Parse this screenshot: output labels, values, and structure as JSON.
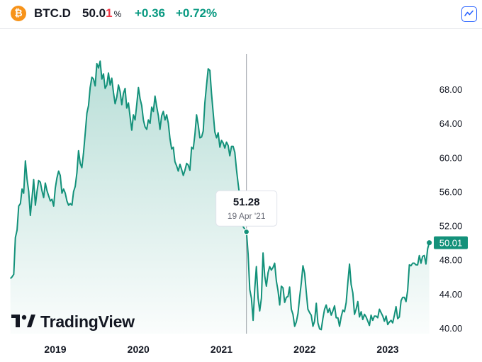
{
  "header": {
    "symbol": "BTC.D",
    "price_main": "50.0",
    "price_last": "1",
    "unit": "%",
    "change": "+0.36",
    "change_pct": "+0.72%"
  },
  "branding": {
    "name": "TradingView"
  },
  "colors": {
    "line": "#13917a",
    "fill": "#13917a",
    "positive": "#089981",
    "negative": "#f23645",
    "btc": "#f7931a",
    "accent": "#2962ff"
  },
  "chart_data": {
    "type": "area",
    "ylim": [
      39.3,
      72.9
    ],
    "y_ticks": [
      40,
      44,
      48,
      52,
      56,
      60,
      64,
      68
    ],
    "y_tick_labels": [
      "40.00",
      "44.00",
      "48.00",
      "52.00",
      "56.00",
      "60.00",
      "64.00",
      "68.00"
    ],
    "x_ticks": [
      2019,
      2020,
      2021,
      2022,
      2023
    ],
    "x_tick_labels": [
      "2019",
      "2020",
      "2021",
      "2022",
      "2023"
    ],
    "xlim": [
      2018.45,
      2023.65
    ],
    "last_value": "50.01",
    "tooltip": {
      "value": "51.28",
      "date": "19 Apr '21",
      "x": 2021.3
    },
    "series": [
      {
        "values": [
          [
            2018.46,
            45.8
          ],
          [
            2018.48,
            46.0
          ],
          [
            2018.5,
            46.3
          ],
          [
            2018.52,
            50.6
          ],
          [
            2018.54,
            51.5
          ],
          [
            2018.56,
            54.3
          ],
          [
            2018.58,
            54.6
          ],
          [
            2018.6,
            56.3
          ],
          [
            2018.62,
            55.8
          ],
          [
            2018.64,
            59.6
          ],
          [
            2018.66,
            57.5
          ],
          [
            2018.68,
            56.0
          ],
          [
            2018.7,
            53.2
          ],
          [
            2018.72,
            55.3
          ],
          [
            2018.74,
            57.4
          ],
          [
            2018.76,
            54.4
          ],
          [
            2018.78,
            56.0
          ],
          [
            2018.8,
            57.3
          ],
          [
            2018.82,
            57.1
          ],
          [
            2018.84,
            56.1
          ],
          [
            2018.86,
            55.3
          ],
          [
            2018.88,
            57.0
          ],
          [
            2018.9,
            56.1
          ],
          [
            2018.92,
            55.5
          ],
          [
            2018.94,
            54.9
          ],
          [
            2018.96,
            55.1
          ],
          [
            2018.98,
            54.3
          ],
          [
            2019.0,
            56.4
          ],
          [
            2019.02,
            57.6
          ],
          [
            2019.04,
            58.4
          ],
          [
            2019.06,
            57.9
          ],
          [
            2019.08,
            55.8
          ],
          [
            2019.1,
            56.3
          ],
          [
            2019.12,
            55.8
          ],
          [
            2019.14,
            54.9
          ],
          [
            2019.16,
            54.4
          ],
          [
            2019.18,
            54.6
          ],
          [
            2019.2,
            54.4
          ],
          [
            2019.22,
            56.0
          ],
          [
            2019.24,
            56.6
          ],
          [
            2019.26,
            58.2
          ],
          [
            2019.28,
            60.8
          ],
          [
            2019.3,
            59.3
          ],
          [
            2019.32,
            58.8
          ],
          [
            2019.34,
            60.6
          ],
          [
            2019.36,
            62.8
          ],
          [
            2019.38,
            65.2
          ],
          [
            2019.4,
            66.1
          ],
          [
            2019.42,
            68.2
          ],
          [
            2019.44,
            69.4
          ],
          [
            2019.46,
            69.2
          ],
          [
            2019.48,
            68.4
          ],
          [
            2019.5,
            71.0
          ],
          [
            2019.52,
            70.5
          ],
          [
            2019.54,
            71.3
          ],
          [
            2019.56,
            69.2
          ],
          [
            2019.58,
            69.8
          ],
          [
            2019.6,
            68.1
          ],
          [
            2019.62,
            68.5
          ],
          [
            2019.64,
            69.9
          ],
          [
            2019.66,
            68.5
          ],
          [
            2019.68,
            69.3
          ],
          [
            2019.7,
            67.6
          ],
          [
            2019.72,
            66.3
          ],
          [
            2019.74,
            67.1
          ],
          [
            2019.76,
            68.5
          ],
          [
            2019.78,
            67.7
          ],
          [
            2019.8,
            66.2
          ],
          [
            2019.82,
            67.5
          ],
          [
            2019.84,
            68.1
          ],
          [
            2019.86,
            65.8
          ],
          [
            2019.88,
            66.4
          ],
          [
            2019.9,
            64.8
          ],
          [
            2019.92,
            63.2
          ],
          [
            2019.94,
            65.0
          ],
          [
            2019.96,
            64.4
          ],
          [
            2019.98,
            66.2
          ],
          [
            2020.0,
            68.2
          ],
          [
            2020.02,
            66.9
          ],
          [
            2020.04,
            66.1
          ],
          [
            2020.06,
            64.4
          ],
          [
            2020.08,
            63.6
          ],
          [
            2020.1,
            63.3
          ],
          [
            2020.12,
            64.4
          ],
          [
            2020.14,
            64.0
          ],
          [
            2020.16,
            65.9
          ],
          [
            2020.18,
            65.4
          ],
          [
            2020.2,
            67.2
          ],
          [
            2020.22,
            66.0
          ],
          [
            2020.24,
            64.9
          ],
          [
            2020.26,
            63.3
          ],
          [
            2020.28,
            64.9
          ],
          [
            2020.3,
            65.4
          ],
          [
            2020.32,
            64.4
          ],
          [
            2020.34,
            65.0
          ],
          [
            2020.36,
            64.0
          ],
          [
            2020.38,
            62.2
          ],
          [
            2020.4,
            61.0
          ],
          [
            2020.42,
            61.2
          ],
          [
            2020.44,
            59.5
          ],
          [
            2020.46,
            59.0
          ],
          [
            2020.48,
            58.4
          ],
          [
            2020.5,
            59.2
          ],
          [
            2020.52,
            58.6
          ],
          [
            2020.54,
            57.9
          ],
          [
            2020.56,
            58.5
          ],
          [
            2020.58,
            59.3
          ],
          [
            2020.6,
            59.1
          ],
          [
            2020.62,
            58.5
          ],
          [
            2020.64,
            61.2
          ],
          [
            2020.66,
            61.0
          ],
          [
            2020.68,
            62.7
          ],
          [
            2020.7,
            65.0
          ],
          [
            2020.72,
            63.8
          ],
          [
            2020.74,
            62.3
          ],
          [
            2020.76,
            62.4
          ],
          [
            2020.78,
            63.1
          ],
          [
            2020.8,
            66.4
          ],
          [
            2020.82,
            68.5
          ],
          [
            2020.84,
            70.4
          ],
          [
            2020.86,
            70.2
          ],
          [
            2020.88,
            67.5
          ],
          [
            2020.9,
            65.2
          ],
          [
            2020.92,
            63.0
          ],
          [
            2020.94,
            62.3
          ],
          [
            2020.96,
            62.9
          ],
          [
            2020.98,
            61.2
          ],
          [
            2021.0,
            62.0
          ],
          [
            2021.02,
            61.7
          ],
          [
            2021.04,
            61.1
          ],
          [
            2021.06,
            61.8
          ],
          [
            2021.08,
            61.4
          ],
          [
            2021.1,
            60.2
          ],
          [
            2021.12,
            61.3
          ],
          [
            2021.14,
            61.3
          ],
          [
            2021.16,
            60.6
          ],
          [
            2021.18,
            58.6
          ],
          [
            2021.2,
            56.9
          ],
          [
            2021.22,
            55.4
          ],
          [
            2021.24,
            53.2
          ],
          [
            2021.26,
            51.9
          ],
          [
            2021.28,
            51.6
          ],
          [
            2021.3,
            51.3
          ],
          [
            2021.32,
            48.7
          ],
          [
            2021.34,
            44.5
          ],
          [
            2021.36,
            43.5
          ],
          [
            2021.38,
            40.9
          ],
          [
            2021.4,
            44.6
          ],
          [
            2021.42,
            47.2
          ],
          [
            2021.44,
            43.5
          ],
          [
            2021.46,
            42.0
          ],
          [
            2021.48,
            43.5
          ],
          [
            2021.5,
            48.8
          ],
          [
            2021.52,
            46.1
          ],
          [
            2021.54,
            44.9
          ],
          [
            2021.56,
            46.5
          ],
          [
            2021.58,
            47.2
          ],
          [
            2021.6,
            46.8
          ],
          [
            2021.62,
            47.1
          ],
          [
            2021.64,
            47.6
          ],
          [
            2021.66,
            45.5
          ],
          [
            2021.68,
            44.4
          ],
          [
            2021.7,
            42.7
          ],
          [
            2021.72,
            44.9
          ],
          [
            2021.74,
            44.7
          ],
          [
            2021.76,
            43.0
          ],
          [
            2021.78,
            43.6
          ],
          [
            2021.8,
            43.7
          ],
          [
            2021.82,
            44.8
          ],
          [
            2021.84,
            42.2
          ],
          [
            2021.86,
            41.6
          ],
          [
            2021.88,
            40.2
          ],
          [
            2021.9,
            40.7
          ],
          [
            2021.92,
            41.7
          ],
          [
            2021.94,
            43.6
          ],
          [
            2021.96,
            45.3
          ],
          [
            2021.98,
            47.3
          ],
          [
            2022.0,
            46.4
          ],
          [
            2022.02,
            44.2
          ],
          [
            2022.04,
            42.2
          ],
          [
            2022.06,
            41.8
          ],
          [
            2022.08,
            41.5
          ],
          [
            2022.1,
            40.2
          ],
          [
            2022.12,
            40.8
          ],
          [
            2022.14,
            42.9
          ],
          [
            2022.16,
            40.6
          ],
          [
            2022.18,
            39.9
          ],
          [
            2022.2,
            39.8
          ],
          [
            2022.22,
            41.1
          ],
          [
            2022.24,
            42.2
          ],
          [
            2022.26,
            42.7
          ],
          [
            2022.28,
            41.8
          ],
          [
            2022.3,
            42.3
          ],
          [
            2022.32,
            41.5
          ],
          [
            2022.34,
            42.0
          ],
          [
            2022.36,
            42.6
          ],
          [
            2022.38,
            41.2
          ],
          [
            2022.4,
            41.2
          ],
          [
            2022.42,
            40.2
          ],
          [
            2022.44,
            41.3
          ],
          [
            2022.46,
            42.1
          ],
          [
            2022.48,
            41.9
          ],
          [
            2022.5,
            43.0
          ],
          [
            2022.52,
            45.3
          ],
          [
            2022.54,
            47.5
          ],
          [
            2022.56,
            45.1
          ],
          [
            2022.58,
            44.1
          ],
          [
            2022.6,
            41.6
          ],
          [
            2022.62,
            42.2
          ],
          [
            2022.64,
            43.1
          ],
          [
            2022.66,
            41.3
          ],
          [
            2022.68,
            41.9
          ],
          [
            2022.7,
            41.0
          ],
          [
            2022.72,
            41.6
          ],
          [
            2022.74,
            41.3
          ],
          [
            2022.76,
            40.8
          ],
          [
            2022.78,
            40.3
          ],
          [
            2022.8,
            41.5
          ],
          [
            2022.82,
            40.9
          ],
          [
            2022.84,
            41.4
          ],
          [
            2022.86,
            41.4
          ],
          [
            2022.88,
            41.2
          ],
          [
            2022.9,
            42.2
          ],
          [
            2022.92,
            41.8
          ],
          [
            2022.94,
            41.4
          ],
          [
            2022.96,
            40.8
          ],
          [
            2022.98,
            41.4
          ],
          [
            2023.0,
            40.4
          ],
          [
            2023.02,
            40.7
          ],
          [
            2023.04,
            40.9
          ],
          [
            2023.06,
            40.6
          ],
          [
            2023.08,
            41.5
          ],
          [
            2023.1,
            42.5
          ],
          [
            2023.12,
            41.1
          ],
          [
            2023.14,
            41.3
          ],
          [
            2023.16,
            43.2
          ],
          [
            2023.18,
            43.6
          ],
          [
            2023.2,
            43.6
          ],
          [
            2023.22,
            43.1
          ],
          [
            2023.24,
            44.4
          ],
          [
            2023.26,
            47.4
          ],
          [
            2023.28,
            47.3
          ],
          [
            2023.3,
            47.6
          ],
          [
            2023.32,
            47.6
          ],
          [
            2023.34,
            47.4
          ],
          [
            2023.36,
            47.4
          ],
          [
            2023.38,
            48.5
          ],
          [
            2023.4,
            47.6
          ],
          [
            2023.42,
            48.4
          ],
          [
            2023.44,
            48.5
          ],
          [
            2023.46,
            47.5
          ],
          [
            2023.48,
            49.3
          ],
          [
            2023.5,
            50.0
          ]
        ]
      }
    ]
  }
}
